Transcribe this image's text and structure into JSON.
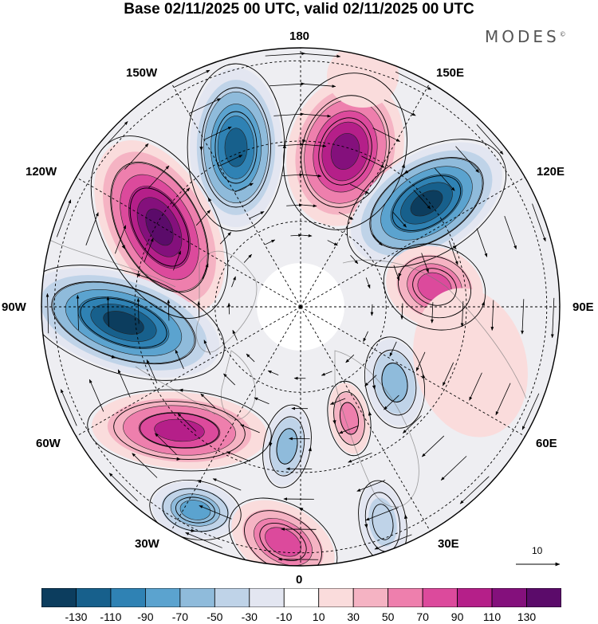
{
  "title": "Base 02/11/2025 00 UTC, valid 02/11/2025 00 UTC",
  "brand": "MODES",
  "brand_mark": "©",
  "longitude_labels": {
    "top": "180",
    "bottom": "0",
    "left": "90W",
    "right": "90E",
    "upper_left_outer": "120W",
    "upper_left_inner": "150W",
    "upper_right_inner": "150E",
    "upper_right_outer": "120E",
    "lower_left_outer": "60W",
    "lower_left_inner": "30W",
    "lower_right_inner": "30E",
    "lower_right_outer": "60E"
  },
  "reference_vector": {
    "label": "10"
  },
  "colorbar": {
    "ticks": [
      "-130",
      "-110",
      "-90",
      "-70",
      "-50",
      "-30",
      "-10",
      "10",
      "30",
      "50",
      "70",
      "90",
      "110",
      "130"
    ],
    "colors": [
      "#0c3d5e",
      "#17608c",
      "#2f82b4",
      "#5ba3cf",
      "#8fbbdb",
      "#bfd3e8",
      "#e3e6f1",
      "#ffffff",
      "#fadcdc",
      "#f5b3c3",
      "#ee7fad",
      "#dc4a9c",
      "#b51f89",
      "#84107c",
      "#5b0b6a"
    ]
  },
  "chart_data": {
    "type": "heatmap",
    "projection": "north polar stereographic",
    "field": "anomaly with streamlines",
    "anomaly_centers": [
      {
        "lon": "170E",
        "sign": "positive",
        "peak_bin": "110 to 130"
      },
      {
        "lon": "165W",
        "sign": "negative",
        "peak_bin": "-130 to -110"
      },
      {
        "lon": "130W",
        "sign": "positive",
        "peak_bin": "110 to 130"
      },
      {
        "lon": "100W",
        "sign": "negative",
        "peak_bin": "-130 to -110"
      },
      {
        "lon": "65W",
        "sign": "positive",
        "peak_bin": "90 to 110"
      },
      {
        "lon": "130E",
        "sign": "negative",
        "peak_bin": "-130 to -110"
      },
      {
        "lon": "95E",
        "sign": "positive",
        "peak_bin": "70 to 90"
      },
      {
        "lon": "30W",
        "sign": "negative",
        "peak_bin": "-70 to -50"
      },
      {
        "lon": "5W",
        "sign": "positive",
        "peak_bin": "70 to 90"
      },
      {
        "lon": "45E",
        "sign": "negative",
        "peak_bin": "-50 to -30"
      }
    ]
  }
}
